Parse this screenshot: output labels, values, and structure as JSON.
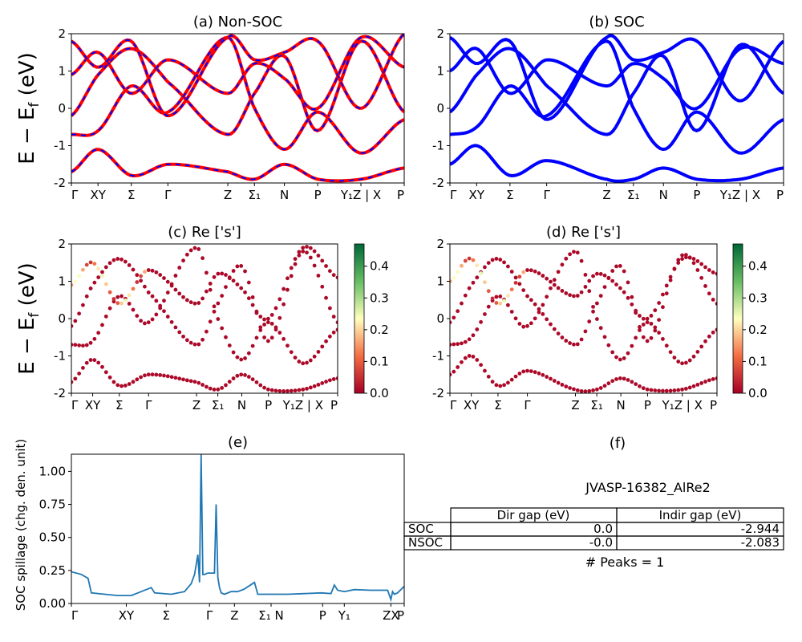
{
  "figure": {
    "ylabel_main": "E − E",
    "ylabel_sub": "f",
    "ylabel_unit": " (eV)"
  },
  "chart_data": [
    {
      "id": "a",
      "type": "line",
      "title": "(a) Non-SOC",
      "ylim": [
        -2,
        2
      ],
      "yticks": [
        -2,
        -1,
        0,
        1,
        2
      ],
      "xticks": [
        "Γ",
        "XY",
        "Σ",
        "Γ",
        "Z",
        "Σ₁",
        "N",
        "P",
        "Y₁Z | X",
        "P"
      ],
      "xtick_pos": [
        0,
        0.08,
        0.18,
        0.29,
        0.47,
        0.55,
        0.64,
        0.74,
        0.87,
        1.0
      ],
      "series": [
        {
          "color": "#ff0000",
          "style": "solid",
          "values": []
        },
        {
          "color": "#0000ff",
          "style": "dashed",
          "values": []
        }
      ],
      "bands_x": [
        0,
        0.08,
        0.18,
        0.29,
        0.47,
        0.55,
        0.64,
        0.74,
        0.87,
        1.0
      ],
      "bands": [
        [
          -0.2,
          0.9,
          1.6,
          0.7,
          -0.7,
          0.4,
          1.4,
          -0.6,
          1.8,
          -0.1
        ],
        [
          -0.7,
          -0.6,
          0.6,
          -0.1,
          1.9,
          0.0,
          -1.1,
          -0.1,
          -1.2,
          -0.3
        ],
        [
          0.9,
          1.5,
          0.4,
          1.3,
          0.4,
          1.2,
          0.8,
          0.0,
          1.9,
          1.1
        ],
        [
          -1.7,
          -1.1,
          -1.8,
          -1.5,
          -1.7,
          -1.9,
          -1.5,
          -1.9,
          -1.9,
          -1.6
        ],
        [
          1.8,
          1.1,
          1.8,
          -0.2,
          1.9,
          1.3,
          1.5,
          1.8,
          0.0,
          2.0
        ]
      ]
    },
    {
      "id": "b",
      "type": "line",
      "title": "(b) SOC",
      "ylim": [
        -2,
        2
      ],
      "yticks": [
        -2,
        -1,
        0,
        1,
        2
      ],
      "xticks": [
        "Γ",
        "XY",
        "Σ",
        "Γ",
        "Z",
        "Σ₁",
        "N",
        "P",
        "Y₁Z | X",
        "P"
      ],
      "xtick_pos": [
        0,
        0.08,
        0.18,
        0.29,
        0.47,
        0.55,
        0.64,
        0.74,
        0.87,
        1.0
      ],
      "series": [
        {
          "color": "#0000ff",
          "style": "solid",
          "values": []
        }
      ],
      "bands_x": [
        0,
        0.08,
        0.18,
        0.29,
        0.47,
        0.55,
        0.64,
        0.74,
        0.87,
        1.0
      ],
      "bands": [
        [
          -0.1,
          0.9,
          1.6,
          0.6,
          -0.7,
          0.4,
          1.4,
          -0.6,
          1.7,
          0.4
        ],
        [
          -0.7,
          -0.5,
          0.6,
          -0.2,
          1.8,
          0.0,
          -1.1,
          -0.1,
          -1.2,
          -0.3
        ],
        [
          1.0,
          1.6,
          0.4,
          1.3,
          0.6,
          1.2,
          0.8,
          0.0,
          1.6,
          1.2
        ],
        [
          -1.5,
          -1.0,
          -1.8,
          -1.4,
          -1.9,
          -1.9,
          -1.6,
          -1.9,
          -1.9,
          -1.6
        ],
        [
          1.9,
          1.2,
          1.8,
          -0.3,
          1.9,
          1.3,
          1.5,
          1.8,
          0.2,
          1.8
        ]
      ]
    },
    {
      "id": "c",
      "type": "scatter",
      "title": "(c)  Re ['s']",
      "ylim": [
        -2,
        2
      ],
      "yticks": [
        -2,
        -1,
        0,
        1,
        2
      ],
      "xticks": [
        "Γ",
        "XY",
        "Σ",
        "Γ",
        "Z",
        "Σ₁",
        "N",
        "P",
        "Y₁Z | X",
        "P"
      ],
      "xtick_pos": [
        0,
        0.08,
        0.18,
        0.29,
        0.47,
        0.55,
        0.64,
        0.74,
        0.87,
        1.0
      ],
      "colorbar": {
        "min": 0.0,
        "max": 0.47,
        "ticks": [
          0.0,
          0.1,
          0.2,
          0.3,
          0.4
        ],
        "colormap": "RdYlGn"
      },
      "bands_x": [
        0,
        0.08,
        0.18,
        0.29,
        0.47,
        0.55,
        0.64,
        0.74,
        0.87,
        1.0
      ],
      "bands": [
        [
          -0.2,
          0.9,
          1.6,
          0.7,
          -0.7,
          0.4,
          1.4,
          -0.6,
          1.8,
          -0.1
        ],
        [
          -0.7,
          -0.6,
          0.6,
          -0.1,
          1.9,
          0.0,
          -1.1,
          -0.1,
          -1.2,
          -0.3
        ],
        [
          0.9,
          1.5,
          0.4,
          1.3,
          0.4,
          1.2,
          0.8,
          0.0,
          1.9,
          1.1
        ],
        [
          -1.7,
          -1.1,
          -1.8,
          -1.5,
          -1.7,
          -1.9,
          -1.5,
          -1.9,
          -1.9,
          -1.6
        ]
      ]
    },
    {
      "id": "d",
      "type": "scatter",
      "title": "(d) Re ['s']",
      "ylim": [
        -2,
        2
      ],
      "yticks": [
        -2,
        -1,
        0,
        1,
        2
      ],
      "xticks": [
        "Γ",
        "XY",
        "Σ",
        "Γ",
        "Z",
        "Σ₁",
        "N",
        "P",
        "Y₁Z | X",
        "P"
      ],
      "xtick_pos": [
        0,
        0.08,
        0.18,
        0.29,
        0.47,
        0.55,
        0.64,
        0.74,
        0.87,
        1.0
      ],
      "colorbar": {
        "min": 0.0,
        "max": 0.47,
        "ticks": [
          0.0,
          0.1,
          0.2,
          0.3,
          0.4
        ],
        "colormap": "RdYlGn"
      },
      "bands_x": [
        0,
        0.08,
        0.18,
        0.29,
        0.47,
        0.55,
        0.64,
        0.74,
        0.87,
        1.0
      ],
      "bands": [
        [
          -0.1,
          0.9,
          1.6,
          0.6,
          -0.7,
          0.4,
          1.4,
          -0.6,
          1.7,
          0.4
        ],
        [
          -0.7,
          -0.5,
          0.6,
          -0.2,
          1.8,
          0.0,
          -1.1,
          -0.1,
          -1.2,
          -0.3
        ],
        [
          1.0,
          1.6,
          0.4,
          1.3,
          0.6,
          1.2,
          0.8,
          0.0,
          1.6,
          1.2
        ],
        [
          -1.5,
          -1.0,
          -1.8,
          -1.4,
          -1.9,
          -1.9,
          -1.6,
          -1.9,
          -1.9,
          -1.6
        ]
      ]
    },
    {
      "id": "e",
      "type": "line",
      "title": "(e)",
      "ylabel": "SOC spillage (chg. den. unit)",
      "ylim": [
        0,
        1.13
      ],
      "yticks": [
        0.0,
        0.25,
        0.5,
        0.75,
        1.0
      ],
      "ytick_labels": [
        "0.00",
        "0.25",
        "0.50",
        "0.75",
        "1.00"
      ],
      "xticks": [
        "Γ",
        "XY",
        "Σ",
        "Γ",
        "Z",
        "Σ₁ N",
        "P",
        "Y₁",
        "ZX",
        "P"
      ],
      "xtick_pos": [
        0,
        0.165,
        0.285,
        0.415,
        0.49,
        0.6,
        0.755,
        0.82,
        0.96,
        1.0
      ],
      "x": [
        0,
        0.03,
        0.05,
        0.06,
        0.1,
        0.14,
        0.18,
        0.21,
        0.24,
        0.25,
        0.3,
        0.34,
        0.36,
        0.37,
        0.38,
        0.385,
        0.39,
        0.395,
        0.4,
        0.41,
        0.43,
        0.435,
        0.44,
        0.445,
        0.45,
        0.46,
        0.48,
        0.5,
        0.52,
        0.55,
        0.56,
        0.57,
        0.6,
        0.65,
        0.7,
        0.75,
        0.78,
        0.79,
        0.8,
        0.82,
        0.85,
        0.9,
        0.95,
        0.96,
        0.965,
        0.97,
        0.98,
        1.0
      ],
      "values": [
        0.24,
        0.22,
        0.19,
        0.08,
        0.07,
        0.06,
        0.06,
        0.09,
        0.12,
        0.08,
        0.07,
        0.09,
        0.15,
        0.22,
        0.37,
        0.16,
        1.13,
        0.22,
        0.22,
        0.23,
        0.23,
        0.75,
        0.2,
        0.12,
        0.08,
        0.07,
        0.09,
        0.09,
        0.11,
        0.16,
        0.07,
        0.07,
        0.07,
        0.07,
        0.075,
        0.08,
        0.075,
        0.14,
        0.1,
        0.09,
        0.105,
        0.1,
        0.1,
        0.03,
        0.09,
        0.07,
        0.08,
        0.13
      ],
      "line_color": "#1f77b4"
    }
  ],
  "panel_f": {
    "title": "(f)",
    "material": "JVASP-16382_AlRe2",
    "table": {
      "headers": [
        "Dir gap (eV)",
        "Indir gap (eV)"
      ],
      "rows": [
        {
          "label": "SOC",
          "dir": "0.0",
          "indir": "-2.944"
        },
        {
          "label": "NSOC",
          "dir": "-0.0",
          "indir": "-2.083"
        }
      ]
    },
    "peaks": "# Peaks = 1"
  }
}
